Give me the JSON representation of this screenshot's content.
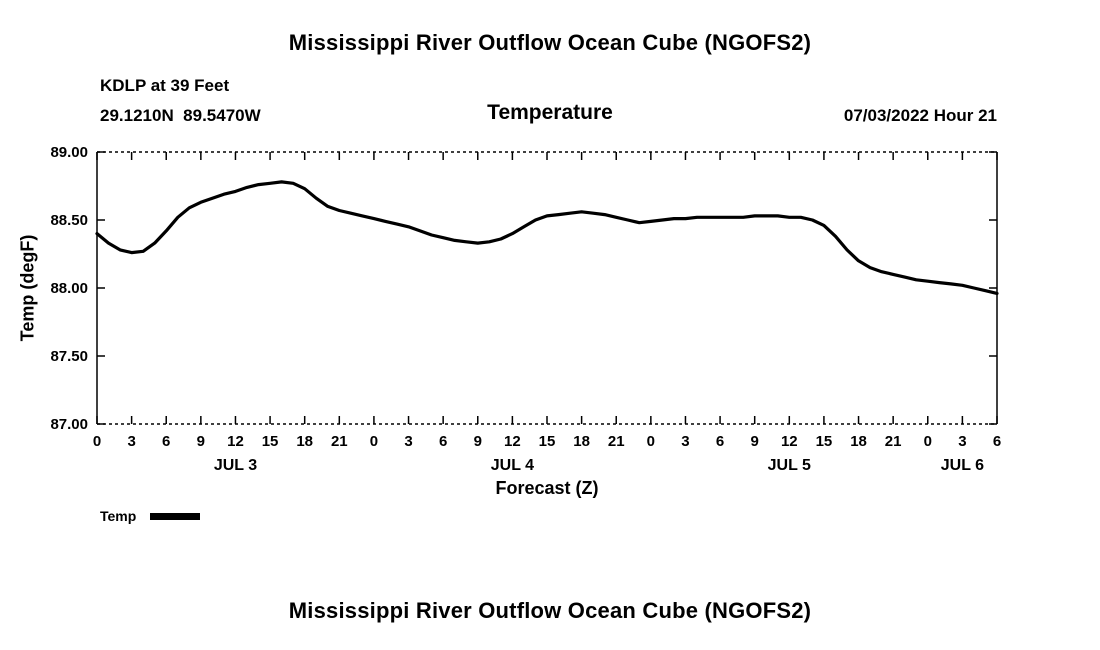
{
  "page": {
    "top_title": "Mississippi River Outflow Ocean Cube (NGOFS2)",
    "bottom_title": "Mississippi River Outflow Ocean Cube (NGOFS2)"
  },
  "header": {
    "station": "KDLP at 39 Feet",
    "coordinates": "29.1210N  89.5470W",
    "plot_title": "Temperature",
    "datetime": "07/03/2022 Hour 21"
  },
  "legend": {
    "label": "Temp"
  },
  "colors": {
    "line": "#000000",
    "text": "#000000",
    "background": "#ffffff"
  },
  "chart_data": {
    "type": "line",
    "title": "Temperature",
    "xlabel": "Forecast (Z)",
    "ylabel": "Temp (degF)",
    "xlim": [
      0,
      78
    ],
    "ylim": [
      87.0,
      89.0
    ],
    "grid": false,
    "legend_position": "bottom-left",
    "y_ticks": [
      {
        "value": 87.0,
        "label": "87.00"
      },
      {
        "value": 87.5,
        "label": "87.50"
      },
      {
        "value": 88.0,
        "label": "88.00"
      },
      {
        "value": 88.5,
        "label": "88.50"
      },
      {
        "value": 89.0,
        "label": "89.00"
      }
    ],
    "x_ticks": [
      {
        "hour": 0,
        "label": "0"
      },
      {
        "hour": 3,
        "label": "3"
      },
      {
        "hour": 6,
        "label": "6"
      },
      {
        "hour": 9,
        "label": "9"
      },
      {
        "hour": 12,
        "label": "12"
      },
      {
        "hour": 15,
        "label": "15"
      },
      {
        "hour": 18,
        "label": "18"
      },
      {
        "hour": 21,
        "label": "21"
      },
      {
        "hour": 24,
        "label": "0"
      },
      {
        "hour": 27,
        "label": "3"
      },
      {
        "hour": 30,
        "label": "6"
      },
      {
        "hour": 33,
        "label": "9"
      },
      {
        "hour": 36,
        "label": "12"
      },
      {
        "hour": 39,
        "label": "15"
      },
      {
        "hour": 42,
        "label": "18"
      },
      {
        "hour": 45,
        "label": "21"
      },
      {
        "hour": 48,
        "label": "0"
      },
      {
        "hour": 51,
        "label": "3"
      },
      {
        "hour": 54,
        "label": "6"
      },
      {
        "hour": 57,
        "label": "9"
      },
      {
        "hour": 60,
        "label": "12"
      },
      {
        "hour": 63,
        "label": "15"
      },
      {
        "hour": 66,
        "label": "18"
      },
      {
        "hour": 69,
        "label": "21"
      },
      {
        "hour": 72,
        "label": "0"
      },
      {
        "hour": 75,
        "label": "3"
      },
      {
        "hour": 78,
        "label": "6"
      }
    ],
    "day_labels": [
      {
        "hour": 12,
        "label": "JUL 3"
      },
      {
        "hour": 36,
        "label": "JUL 4"
      },
      {
        "hour": 60,
        "label": "JUL 5"
      },
      {
        "hour": 75,
        "label": "JUL 6"
      }
    ],
    "series": [
      {
        "name": "Temp",
        "color": "#000000",
        "x": [
          0,
          1,
          2,
          3,
          4,
          5,
          6,
          7,
          8,
          9,
          10,
          11,
          12,
          13,
          14,
          15,
          16,
          17,
          18,
          19,
          20,
          21,
          22,
          23,
          24,
          25,
          26,
          27,
          28,
          29,
          30,
          31,
          32,
          33,
          34,
          35,
          36,
          37,
          38,
          39,
          40,
          41,
          42,
          43,
          44,
          45,
          46,
          47,
          48,
          49,
          50,
          51,
          52,
          53,
          54,
          55,
          56,
          57,
          58,
          59,
          60,
          61,
          62,
          63,
          64,
          65,
          66,
          67,
          68,
          69,
          70,
          71,
          72,
          73,
          74,
          75,
          76,
          77,
          78
        ],
        "values": [
          88.4,
          88.33,
          88.28,
          88.26,
          88.27,
          88.33,
          88.42,
          88.52,
          88.59,
          88.63,
          88.66,
          88.69,
          88.71,
          88.74,
          88.76,
          88.77,
          88.78,
          88.77,
          88.73,
          88.66,
          88.6,
          88.57,
          88.55,
          88.53,
          88.51,
          88.49,
          88.47,
          88.45,
          88.42,
          88.39,
          88.37,
          88.35,
          88.34,
          88.33,
          88.34,
          88.36,
          88.4,
          88.45,
          88.5,
          88.53,
          88.54,
          88.55,
          88.56,
          88.55,
          88.54,
          88.52,
          88.5,
          88.48,
          88.49,
          88.5,
          88.51,
          88.51,
          88.52,
          88.52,
          88.52,
          88.52,
          88.52,
          88.53,
          88.53,
          88.53,
          88.52,
          88.52,
          88.5,
          88.46,
          88.38,
          88.28,
          88.2,
          88.15,
          88.12,
          88.1,
          88.08,
          88.06,
          88.05,
          88.04,
          88.03,
          88.02,
          88.0,
          87.98,
          87.96
        ]
      }
    ]
  }
}
